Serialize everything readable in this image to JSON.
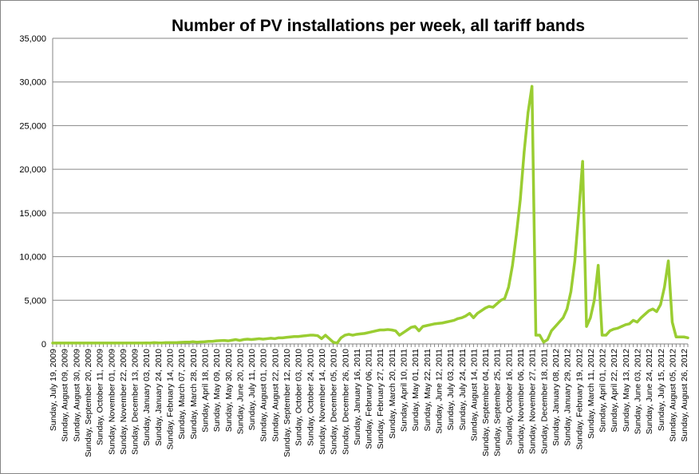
{
  "chart_data": {
    "type": "line",
    "title": "Number of PV installations per week, all tariff bands",
    "xlabel": "",
    "ylabel": "",
    "ylim": [
      0,
      35000
    ],
    "yticks": [
      0,
      5000,
      10000,
      15000,
      20000,
      25000,
      30000,
      35000
    ],
    "ytick_labels": [
      "0",
      "5,000",
      "10,000",
      "15,000",
      "20,000",
      "25,000",
      "30,000",
      "35,000"
    ],
    "grid": true,
    "legend": "none",
    "line_color": "#9acd32",
    "x_start": "2009-07-19",
    "week_count": 164,
    "x_tick_labels": [
      "Sunday, July 19, 2009",
      "Sunday, August 09, 2009",
      "Sunday, August 30, 2009",
      "Sunday, September 20, 2009",
      "Sunday, October 11, 2009",
      "Sunday, November 01, 2009",
      "Sunday, November 22, 2009",
      "Sunday, December 13, 2009",
      "Sunday, January 03, 2010",
      "Sunday, January 24, 2010",
      "Sunday, February 14, 2010",
      "Sunday, March 07, 2010",
      "Sunday, March 28, 2010",
      "Sunday, April 18, 2010",
      "Sunday, May 09, 2010",
      "Sunday, May 30, 2010",
      "Sunday, June 20, 2010",
      "Sunday, July 11, 2010",
      "Sunday, August 01, 2010",
      "Sunday, August 22, 2010",
      "Sunday, September 12, 2010",
      "Sunday, October 03, 2010",
      "Sunday, October 24, 2010",
      "Sunday, November 14, 2010",
      "Sunday, December 05, 2010",
      "Sunday, December 26, 2010",
      "Sunday, January 16, 2011",
      "Sunday, February 06, 2011",
      "Sunday, February 27, 2011",
      "Sunday, March 20, 2011",
      "Sunday, April 10, 2011",
      "Sunday, May 01, 2011",
      "Sunday, May 22, 2011",
      "Sunday, June 12, 2011",
      "Sunday, July 03, 2011",
      "Sunday, July 24, 2011",
      "Sunday, August 14, 2011",
      "Sunday, September 04, 2011",
      "Sunday, September 25, 2011",
      "Sunday, October 16, 2011",
      "Sunday, November 06, 2011",
      "Sunday, November 27, 2011",
      "Sunday, December 18, 2011",
      "Sunday, January 08, 2012",
      "Sunday, January 29, 2012",
      "Sunday, February 19, 2012",
      "Sunday, March 11, 2012",
      "Sunday, April 01, 2012",
      "Sunday, April 22, 2012",
      "Sunday, May 13, 2012",
      "Sunday, June 03, 2012",
      "Sunday, June 24, 2012",
      "Sunday, July 15, 2012",
      "Sunday, August 05, 2012",
      "Sunday, August 26, 2012"
    ],
    "series": [
      {
        "name": "",
        "values": [
          100,
          100,
          100,
          100,
          100,
          100,
          100,
          100,
          100,
          100,
          100,
          100,
          100,
          100,
          100,
          100,
          100,
          100,
          100,
          100,
          100,
          100,
          100,
          100,
          120,
          100,
          150,
          130,
          120,
          150,
          150,
          150,
          160,
          180,
          200,
          200,
          250,
          200,
          230,
          250,
          300,
          300,
          350,
          380,
          400,
          350,
          420,
          500,
          400,
          500,
          550,
          500,
          550,
          600,
          550,
          600,
          650,
          600,
          700,
          700,
          750,
          800,
          850,
          850,
          900,
          950,
          1000,
          1000,
          950,
          600,
          1000,
          600,
          200,
          100,
          700,
          1000,
          1100,
          1000,
          1100,
          1150,
          1200,
          1300,
          1400,
          1500,
          1600,
          1600,
          1650,
          1600,
          1500,
          1000,
          1300,
          1600,
          1900,
          2000,
          1500,
          2000,
          2100,
          2200,
          2300,
          2350,
          2400,
          2500,
          2600,
          2700,
          2900,
          3000,
          3200,
          3500,
          3000,
          3500,
          3800,
          4100,
          4300,
          4200,
          4600,
          5000,
          5200,
          6500,
          9000,
          12500,
          16500,
          22000,
          26500,
          29500,
          1000,
          1000,
          200,
          500,
          1500,
          2000,
          2500,
          3000,
          4000,
          6000,
          9500,
          15000,
          20900,
          2000,
          3000,
          5000,
          9000,
          1000,
          1000,
          1500,
          1700,
          1800,
          2000,
          2200,
          2300,
          2700,
          2500,
          3000,
          3400,
          3800,
          4000,
          3700,
          4500,
          6500,
          9500,
          2500,
          800,
          800,
          800,
          700
        ]
      }
    ]
  }
}
